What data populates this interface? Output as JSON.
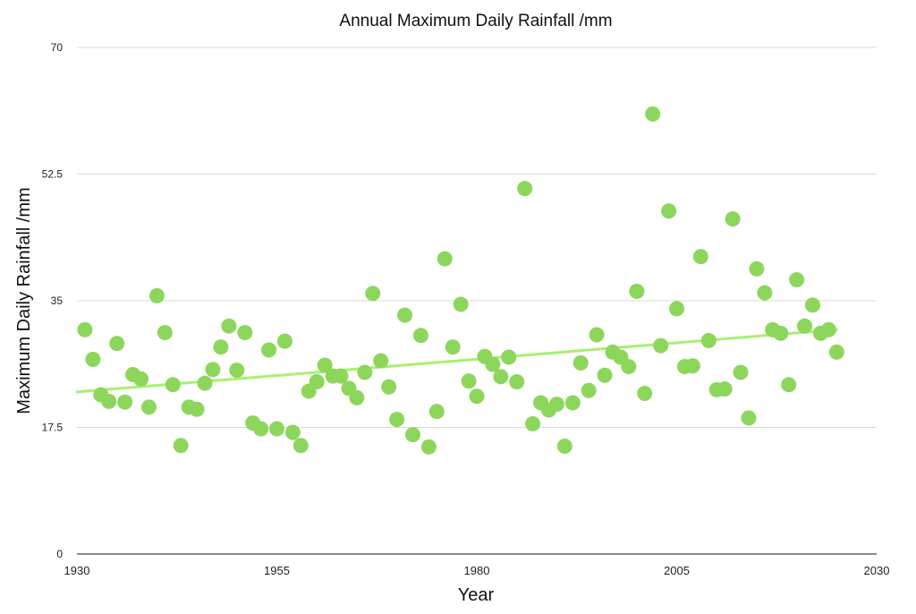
{
  "chart_data": {
    "type": "scatter",
    "title": "Annual Maximum Daily Rainfall /mm",
    "xlabel": "Year",
    "ylabel": "Maximum Daily Rainfall /mm",
    "xlim": [
      1930,
      2030
    ],
    "ylim": [
      0,
      70
    ],
    "xticks": [
      "1930",
      "1955",
      "1980",
      "2005",
      "2030"
    ],
    "yticks": [
      "0",
      "17.5",
      "35",
      "52.5",
      "70"
    ],
    "grid": "horizontal",
    "colors": {
      "points": "#8dd65c",
      "trendline": "#a8f070",
      "grid": "#d9d9d9",
      "axis": "#111111"
    },
    "series": [
      {
        "points": [
          [
            1931,
            31.0
          ],
          [
            1932,
            26.9
          ],
          [
            1933,
            22.0
          ],
          [
            1934,
            21.1
          ],
          [
            1935,
            29.1
          ],
          [
            1936,
            21.0
          ],
          [
            1937,
            24.8
          ],
          [
            1938,
            24.2
          ],
          [
            1939,
            20.3
          ],
          [
            1940,
            35.7
          ],
          [
            1941,
            30.6
          ],
          [
            1942,
            23.4
          ],
          [
            1943,
            15.0
          ],
          [
            1944,
            20.3
          ],
          [
            1945,
            20.0
          ],
          [
            1946,
            23.6
          ],
          [
            1947,
            25.5
          ],
          [
            1948,
            28.6
          ],
          [
            1949,
            31.5
          ],
          [
            1950,
            25.4
          ],
          [
            1951,
            30.6
          ],
          [
            1952,
            18.1
          ],
          [
            1953,
            17.3
          ],
          [
            1954,
            28.2
          ],
          [
            1955,
            17.3
          ],
          [
            1956,
            29.4
          ],
          [
            1957,
            16.8
          ],
          [
            1958,
            15.0
          ],
          [
            1959,
            22.5
          ],
          [
            1960,
            23.8
          ],
          [
            1961,
            26.1
          ],
          [
            1962,
            24.6
          ],
          [
            1963,
            24.6
          ],
          [
            1964,
            22.9
          ],
          [
            1965,
            21.6
          ],
          [
            1966,
            25.1
          ],
          [
            1967,
            36.0
          ],
          [
            1968,
            26.7
          ],
          [
            1969,
            23.1
          ],
          [
            1970,
            18.6
          ],
          [
            1971,
            33.0
          ],
          [
            1972,
            16.5
          ],
          [
            1973,
            30.2
          ],
          [
            1974,
            14.8
          ],
          [
            1975,
            19.7
          ],
          [
            1976,
            40.8
          ],
          [
            1977,
            28.6
          ],
          [
            1978,
            34.5
          ],
          [
            1979,
            23.9
          ],
          [
            1980,
            21.8
          ],
          [
            1981,
            27.3
          ],
          [
            1982,
            26.2
          ],
          [
            1983,
            24.5
          ],
          [
            1984,
            27.2
          ],
          [
            1985,
            23.8
          ],
          [
            1986,
            50.5
          ],
          [
            1987,
            18.0
          ],
          [
            1988,
            20.9
          ],
          [
            1989,
            19.9
          ],
          [
            1990,
            20.7
          ],
          [
            1991,
            14.9
          ],
          [
            1992,
            20.9
          ],
          [
            1993,
            26.4
          ],
          [
            1994,
            22.6
          ],
          [
            1995,
            30.3
          ],
          [
            1996,
            24.7
          ],
          [
            1997,
            27.9
          ],
          [
            1998,
            27.2
          ],
          [
            1999,
            25.9
          ],
          [
            2000,
            36.3
          ],
          [
            2001,
            22.2
          ],
          [
            2002,
            60.8
          ],
          [
            2003,
            28.8
          ],
          [
            2004,
            47.4
          ],
          [
            2005,
            33.9
          ],
          [
            2006,
            25.9
          ],
          [
            2007,
            26.0
          ],
          [
            2008,
            41.1
          ],
          [
            2009,
            29.5
          ],
          [
            2010,
            22.7
          ],
          [
            2011,
            22.8
          ],
          [
            2012,
            46.3
          ],
          [
            2013,
            25.1
          ],
          [
            2014,
            18.8
          ],
          [
            2015,
            39.4
          ],
          [
            2016,
            36.1
          ],
          [
            2017,
            31.0
          ],
          [
            2018,
            30.5
          ],
          [
            2019,
            23.4
          ],
          [
            2020,
            37.9
          ],
          [
            2021,
            31.5
          ],
          [
            2022,
            34.4
          ],
          [
            2023,
            30.5
          ],
          [
            2024,
            31.0
          ],
          [
            2025,
            27.9
          ]
        ]
      }
    ],
    "trendline": {
      "x": [
        1930,
        2025
      ],
      "y": [
        22.4,
        31.0
      ]
    }
  }
}
